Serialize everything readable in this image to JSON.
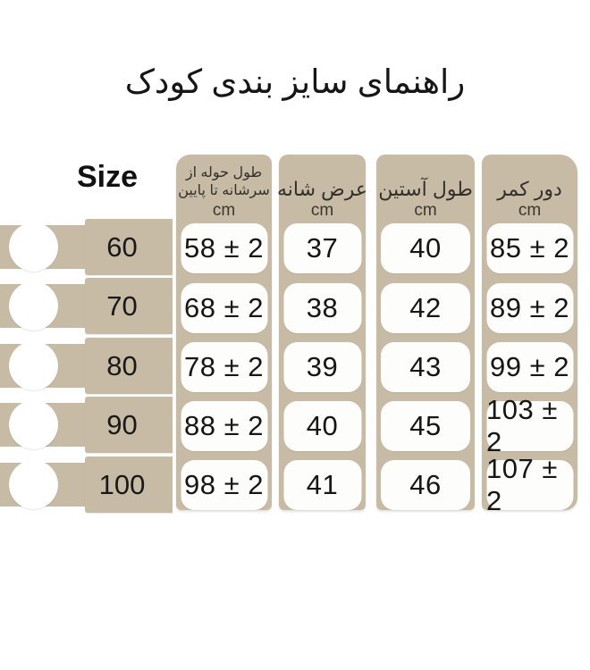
{
  "title": "راهنمای سایز بندی کودک",
  "size_header": "Size",
  "columns": [
    {
      "lines": [
        "طول حوله از",
        "سرشانه تا پایین"
      ],
      "unit": "cm"
    },
    {
      "lines": [
        "عرض شانه"
      ],
      "unit": "cm"
    },
    {
      "lines": [
        "طول آستین"
      ],
      "unit": "cm"
    },
    {
      "lines": [
        "دور کمر"
      ],
      "unit": "cm"
    }
  ],
  "rows": [
    {
      "size": "60",
      "values": [
        "58 ± 2",
        "37",
        "40",
        "85 ± 2"
      ]
    },
    {
      "size": "70",
      "values": [
        "68 ± 2",
        "38",
        "42",
        "89 ± 2"
      ]
    },
    {
      "size": "80",
      "values": [
        "78 ± 2",
        "39",
        "43",
        "99 ± 2"
      ]
    },
    {
      "size": "90",
      "values": [
        "88 ± 2",
        "40",
        "45",
        "103 ± 2"
      ]
    },
    {
      "size": "100",
      "values": [
        "98 ± 2",
        "41",
        "46",
        "107 ± 2"
      ]
    }
  ],
  "colors": {
    "tan": "#c7bba6",
    "pill": "#fdfdfc",
    "background": "#ffffff",
    "text": "#161616"
  }
}
